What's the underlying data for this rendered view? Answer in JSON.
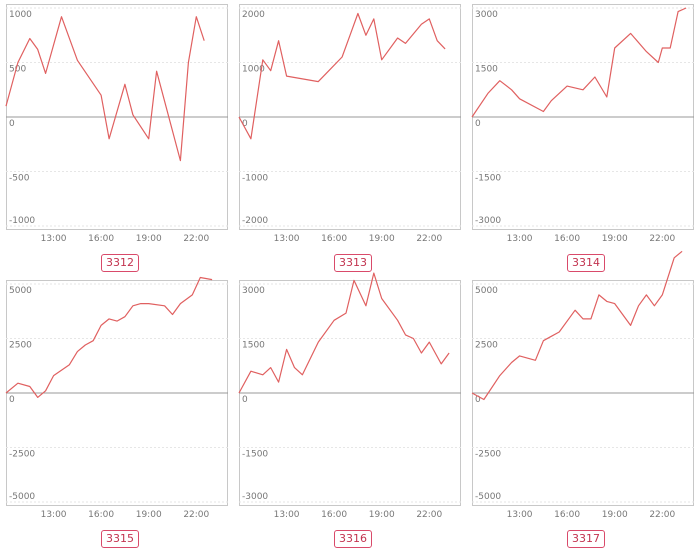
{
  "colors": {
    "line": "#e06060",
    "label_border": "#d94a6a",
    "label_text": "#c2334f"
  },
  "chart_data": [
    {
      "type": "line",
      "label": "3312",
      "yticks": [
        "1000",
        "500",
        "0",
        "-500",
        "-1000"
      ],
      "ylim": [
        -1000,
        1000
      ],
      "xticks": [
        "13:00",
        "16:00",
        "19:00",
        "22:00"
      ],
      "x": [
        10,
        10.75,
        11.5,
        12,
        12.5,
        13.5,
        14.5,
        16,
        16.5,
        17.5,
        18,
        19,
        19.5,
        21,
        21.5,
        22,
        22.5
      ],
      "y": [
        100,
        500,
        720,
        620,
        400,
        920,
        520,
        200,
        -200,
        300,
        20,
        -200,
        420,
        -400,
        500,
        920,
        700
      ]
    },
    {
      "type": "line",
      "label": "3313",
      "yticks": [
        "2000",
        "1000",
        "0",
        "-1000",
        "-2000"
      ],
      "ylim": [
        -2000,
        2000
      ],
      "xticks": [
        "13:00",
        "16:00",
        "19:00",
        "22:00"
      ],
      "x": [
        10,
        10.75,
        11.5,
        12,
        12.5,
        13,
        15,
        15.5,
        16.5,
        17,
        17.5,
        18,
        18.5,
        19,
        20,
        20.5,
        21.5,
        22,
        22.5,
        23
      ],
      "y": [
        0,
        -400,
        1050,
        850,
        1400,
        750,
        650,
        800,
        1100,
        1500,
        1900,
        1500,
        1800,
        1050,
        1450,
        1350,
        1700,
        1800,
        1400,
        1250
      ]
    },
    {
      "type": "line",
      "label": "3314",
      "yticks": [
        "3000",
        "1500",
        "0",
        "-1500",
        "-3000"
      ],
      "ylim": [
        -3000,
        3000
      ],
      "xticks": [
        "13:00",
        "16:00",
        "19:00",
        "22:00"
      ],
      "x": [
        10,
        11,
        11.75,
        12.5,
        13,
        14.5,
        15,
        16,
        17,
        17.75,
        18.5,
        19,
        20,
        21,
        21.75,
        22,
        22.5,
        23,
        23.5
      ],
      "y": [
        0,
        650,
        1000,
        750,
        500,
        150,
        450,
        850,
        750,
        1100,
        550,
        1900,
        2300,
        1800,
        1500,
        1900,
        1900,
        2900,
        3000
      ]
    },
    {
      "type": "line",
      "label": "3315",
      "yticks": [
        "5000",
        "2500",
        "0",
        "-2500",
        "-5000"
      ],
      "ylim": [
        -5000,
        5000
      ],
      "xticks": [
        "13:00",
        "16:00",
        "19:00",
        "22:00"
      ],
      "x": [
        10,
        10.75,
        11.5,
        12,
        12.5,
        13,
        14,
        14.5,
        15,
        15.5,
        16,
        16.5,
        17,
        17.5,
        18,
        18.5,
        19,
        20,
        20.5,
        21,
        21.75,
        22.25,
        23
      ],
      "y": [
        0,
        450,
        300,
        -200,
        100,
        800,
        1300,
        1900,
        2200,
        2400,
        3100,
        3400,
        3300,
        3500,
        4000,
        4100,
        4100,
        4000,
        3600,
        4100,
        4500,
        5300,
        5200
      ]
    },
    {
      "type": "line",
      "label": "3316",
      "yticks": [
        "3000",
        "1500",
        "0",
        "-1500",
        "-3000"
      ],
      "ylim": [
        -3000,
        3000
      ],
      "xticks": [
        "13:00",
        "16:00",
        "19:00",
        "22:00"
      ],
      "x": [
        10,
        10.75,
        11.5,
        12,
        12.5,
        13,
        13.5,
        14,
        15,
        16,
        16.75,
        17.25,
        18,
        18.5,
        19,
        20,
        20.5,
        21,
        21.5,
        22,
        22.75,
        23.25
      ],
      "y": [
        0,
        600,
        500,
        700,
        300,
        1200,
        700,
        500,
        1400,
        2000,
        2200,
        3100,
        2400,
        3300,
        2600,
        2000,
        1600,
        1500,
        1100,
        1400,
        800,
        1100
      ]
    },
    {
      "type": "line",
      "label": "3317",
      "yticks": [
        "5000",
        "2500",
        "0",
        "-2500",
        "-5000"
      ],
      "ylim": [
        -5000,
        5000
      ],
      "xticks": [
        "13:00",
        "16:00",
        "19:00",
        "22:00"
      ],
      "x": [
        10,
        10.75,
        11.75,
        12.5,
        13,
        14,
        14.5,
        15,
        15.5,
        16.5,
        17,
        17.5,
        18,
        18.5,
        19,
        20,
        20.5,
        21,
        21.5,
        22,
        22.75,
        23.25
      ],
      "y": [
        0,
        -300,
        800,
        1400,
        1700,
        1500,
        2400,
        2600,
        2800,
        3800,
        3400,
        3400,
        4500,
        4200,
        4100,
        3100,
        4000,
        4500,
        4000,
        4500,
        6200,
        6500
      ]
    }
  ]
}
